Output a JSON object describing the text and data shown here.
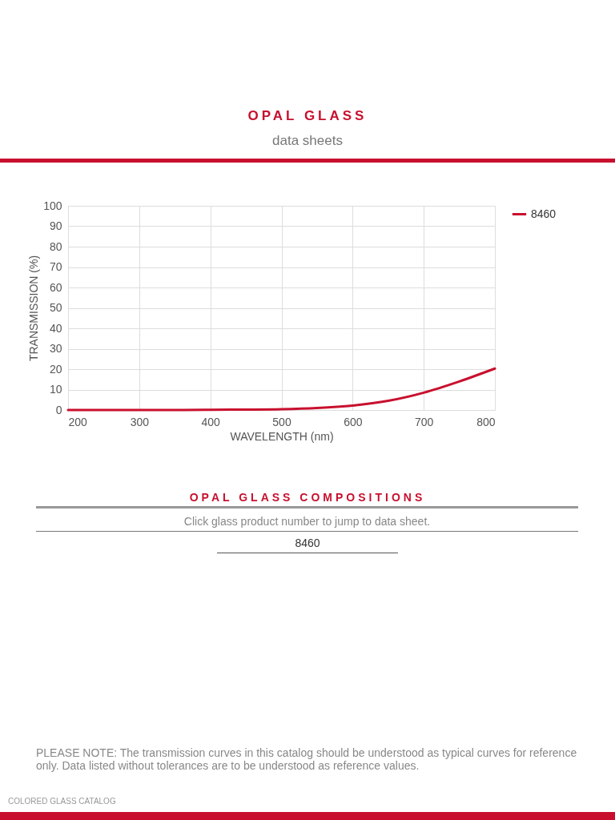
{
  "chart_data": {
    "type": "line",
    "title": "OPAL GLASS",
    "subtitle": "data sheets",
    "xlabel": "WAVELENGTH (nm)",
    "ylabel": "TRANSMISSION (%)",
    "x": [
      200,
      250,
      300,
      350,
      400,
      450,
      500,
      550,
      600,
      650,
      700,
      750,
      800
    ],
    "series": [
      {
        "name": "8460",
        "color": "#c8102e",
        "values": [
          0,
          0,
          0,
          0,
          0.1,
          0.2,
          0.4,
          1,
          2.2,
          4.5,
          8.5,
          14,
          20.3
        ]
      }
    ],
    "xlim": [
      200,
      800
    ],
    "xticks": [
      200,
      300,
      400,
      500,
      600,
      700,
      800
    ],
    "ylim": [
      0,
      100
    ],
    "yticks": [
      0,
      10,
      20,
      30,
      40,
      50,
      60,
      70,
      80,
      90,
      100
    ],
    "grid": true,
    "legend": "right",
    "line_style": "solid",
    "annotations": [
      "OPAL GLASS COMPOSITIONS",
      "Click glass product number to jump to data sheet.",
      "8460",
      "PLEASE NOTE: The transmission curves in this catalog should be understood as typical curves for reference only. Data listed without tolerances are to be understood as reference values.",
      "COLORED GLASS CATALOG"
    ]
  }
}
